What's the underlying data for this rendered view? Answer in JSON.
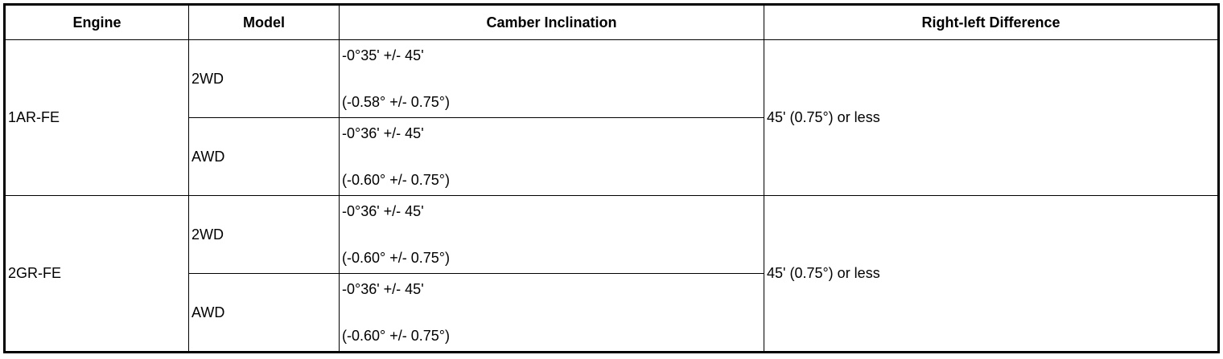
{
  "table": {
    "headers": [
      "Engine",
      "Model",
      "Camber Inclination",
      "Right-left Difference"
    ],
    "groups": [
      {
        "engine": "1AR-FE",
        "difference": "45' (0.75°) or less",
        "rows": [
          {
            "model": "2WD",
            "camber_deg_min": "-0°35' +/- 45'",
            "camber_decimal": "(-0.58° +/- 0.75°)"
          },
          {
            "model": "AWD",
            "camber_deg_min": "-0°36' +/- 45'",
            "camber_decimal": "(-0.60° +/- 0.75°)"
          }
        ]
      },
      {
        "engine": "2GR-FE",
        "difference": "45' (0.75°) or less",
        "rows": [
          {
            "model": "2WD",
            "camber_deg_min": "-0°36' +/- 45'",
            "camber_decimal": "(-0.60° +/- 0.75°)"
          },
          {
            "model": "AWD",
            "camber_deg_min": "-0°36' +/- 45'",
            "camber_decimal": "(-0.60° +/- 0.75°)"
          }
        ]
      }
    ]
  }
}
